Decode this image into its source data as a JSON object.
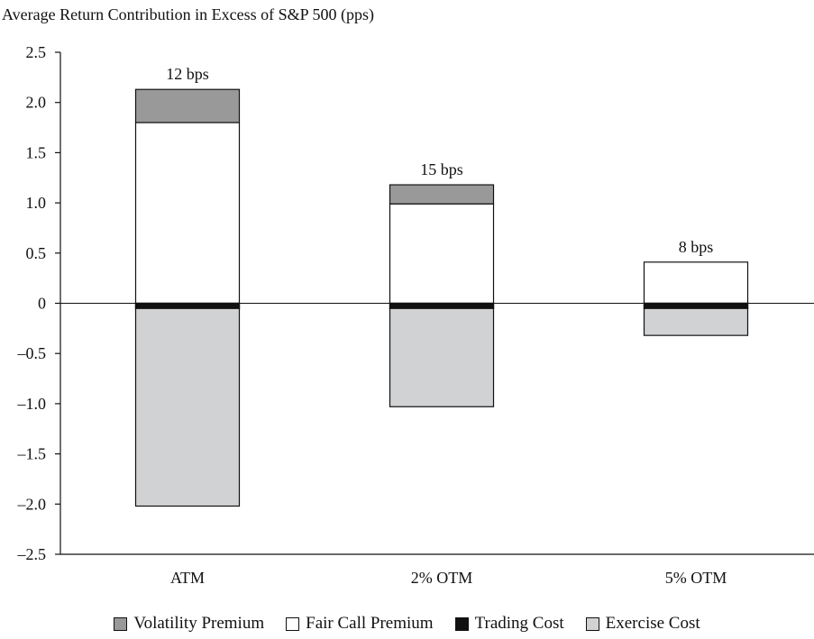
{
  "chart_data": {
    "type": "bar",
    "stacked": true,
    "title": "Average Return Contribution in Excess of S&P 500 (pps)",
    "xlabel": "",
    "ylabel": "",
    "ylim": [
      -2.5,
      2.5
    ],
    "yticks": [
      2.5,
      2.0,
      1.5,
      1.0,
      0.5,
      0,
      -0.5,
      -1.0,
      -1.5,
      -2.0,
      -2.5
    ],
    "ytick_labels": [
      "2.5",
      "2.0",
      "1.5",
      "1.0",
      "0.5",
      "0",
      "–0.5",
      "–1.0",
      "–1.5",
      "–2.0",
      "–2.5"
    ],
    "categories": [
      "ATM",
      "2% OTM",
      "5% OTM"
    ],
    "series": [
      {
        "name": "Volatility Premium",
        "color": "#999999",
        "values": [
          0.33,
          0.19,
          0
        ]
      },
      {
        "name": "Fair Call Premium",
        "color": "#ffffff",
        "values": [
          1.8,
          0.99,
          0.41
        ]
      },
      {
        "name": "Trading Cost",
        "color": "#111111",
        "values": [
          -0.05,
          -0.05,
          -0.05
        ]
      },
      {
        "name": "Exercise Cost",
        "color": "#d1d2d4",
        "values": [
          -1.97,
          -0.98,
          -0.27
        ]
      }
    ],
    "annotations": [
      "12 bps",
      "15 bps",
      "8 bps"
    ],
    "grid": false,
    "legend_position": "bottom"
  }
}
